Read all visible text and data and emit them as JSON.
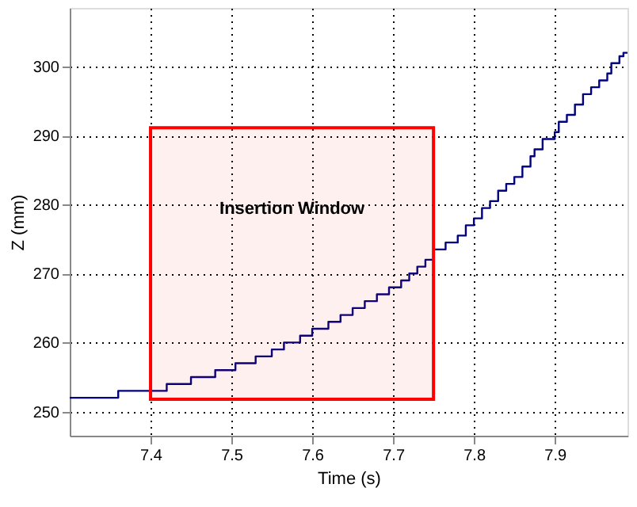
{
  "chart_data": {
    "type": "step",
    "xlabel": "Time (s)",
    "ylabel": "Z (mm)",
    "xlim": [
      7.3,
      7.99
    ],
    "xticks": [
      7.4,
      7.5,
      7.6,
      7.7,
      7.8,
      7.9
    ],
    "ylim": [
      246.5,
      308.5
    ],
    "yticks": [
      250,
      260,
      270,
      280,
      290,
      300
    ],
    "grid": true,
    "line_style": "solid",
    "series": [
      {
        "color": "#000080",
        "x": [
          7.3,
          7.36,
          7.42,
          7.45,
          7.48,
          7.505,
          7.53,
          7.55,
          7.565,
          7.585,
          7.6,
          7.62,
          7.635,
          7.65,
          7.665,
          7.68,
          7.695,
          7.71,
          7.72,
          7.73,
          7.74,
          7.75,
          7.765,
          7.78,
          7.79,
          7.8,
          7.81,
          7.82,
          7.83,
          7.84,
          7.85,
          7.86,
          7.87,
          7.875,
          7.885,
          7.9,
          7.905,
          7.915,
          7.925,
          7.935,
          7.945,
          7.955,
          7.965,
          7.97,
          7.98,
          7.985,
          7.99
        ],
        "values": [
          252,
          253,
          254,
          255,
          256,
          257,
          258,
          259,
          260,
          261,
          262,
          263,
          264,
          265,
          266,
          267,
          268,
          269,
          270,
          271,
          272,
          273.5,
          274.5,
          275.5,
          277,
          278,
          279.5,
          280.5,
          282,
          283,
          284,
          285.5,
          287,
          288,
          289.5,
          290.5,
          292,
          293,
          294.5,
          296,
          297,
          298,
          299,
          300.5,
          301.5,
          302,
          302
        ]
      }
    ],
    "bands": [
      {
        "axis": "x",
        "from": 7.4,
        "to": 7.75,
        "label": "Insertion Window",
        "color": "#ff0000"
      }
    ]
  }
}
